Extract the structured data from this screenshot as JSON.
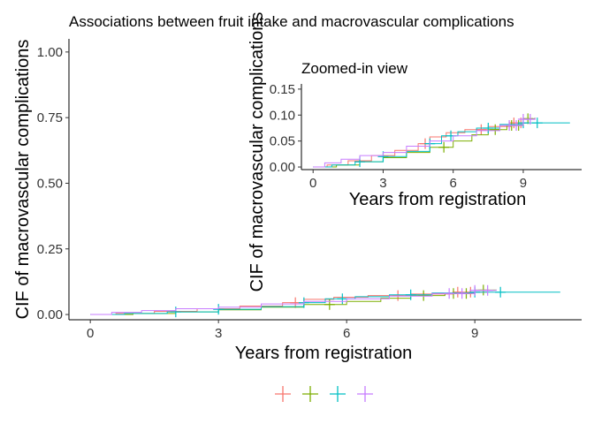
{
  "chart_data": [
    {
      "type": "line",
      "title": "Associations between fruit intake and macrovascular complications",
      "xlabel": "Years from registration",
      "ylabel": "CIF of macrovascular complications",
      "xlim": [
        -0.5,
        11.5
      ],
      "ylim": [
        -0.02,
        1.05
      ],
      "xticks": [
        "0",
        "3",
        "6",
        "9"
      ],
      "yticks": [
        "0.00",
        "0.25",
        "0.50",
        "0.75",
        "1.00"
      ],
      "grid": false,
      "legend": "bottom",
      "series": [
        {
          "color": "#F8766D",
          "steps": [
            [
              0,
              0
            ],
            [
              0.6,
              0.004
            ],
            [
              1.5,
              0.012
            ],
            [
              2.5,
              0.022
            ],
            [
              3.5,
              0.032
            ],
            [
              4.5,
              0.045
            ],
            [
              5.0,
              0.058
            ],
            [
              5.7,
              0.066
            ],
            [
              6.5,
              0.072
            ],
            [
              7.5,
              0.078
            ],
            [
              8.5,
              0.085
            ],
            [
              9.3,
              0.085
            ]
          ],
          "censor": [
            4.8,
            7.2,
            8.6,
            8.9
          ]
        },
        {
          "color": "#7CAE00",
          "steps": [
            [
              0,
              0
            ],
            [
              1.0,
              0.004
            ],
            [
              2.0,
              0.01
            ],
            [
              3.0,
              0.018
            ],
            [
              4.0,
              0.028
            ],
            [
              5.0,
              0.038
            ],
            [
              6.0,
              0.05
            ],
            [
              6.8,
              0.062
            ],
            [
              7.5,
              0.072
            ],
            [
              8.3,
              0.08
            ],
            [
              9.0,
              0.093
            ],
            [
              9.5,
              0.095
            ]
          ],
          "censor": [
            5.6,
            7.8,
            8.5,
            8.8,
            9.2
          ]
        },
        {
          "color": "#00BFC4",
          "steps": [
            [
              0,
              0
            ],
            [
              0.8,
              0.004
            ],
            [
              1.8,
              0.01
            ],
            [
              3.0,
              0.02
            ],
            [
              4.0,
              0.03
            ],
            [
              5.0,
              0.045
            ],
            [
              5.5,
              0.06
            ],
            [
              6.2,
              0.068
            ],
            [
              7.0,
              0.075
            ],
            [
              8.0,
              0.082
            ],
            [
              9.0,
              0.085
            ],
            [
              11.0,
              0.085
            ]
          ],
          "censor": [
            2.0,
            3.0,
            5.0,
            5.9,
            7.5,
            9.0,
            9.6
          ]
        },
        {
          "color": "#C77CFF",
          "steps": [
            [
              0,
              0
            ],
            [
              0.5,
              0.008
            ],
            [
              1.2,
              0.015
            ],
            [
              2.0,
              0.022
            ],
            [
              3.0,
              0.028
            ],
            [
              4.0,
              0.04
            ],
            [
              5.0,
              0.05
            ],
            [
              6.0,
              0.06
            ],
            [
              7.0,
              0.07
            ],
            [
              8.0,
              0.08
            ],
            [
              9.0,
              0.092
            ],
            [
              9.5,
              0.095
            ]
          ],
          "censor": [
            8.4,
            8.7,
            9.0,
            9.3
          ]
        }
      ]
    },
    {
      "type": "line",
      "title": "Zoomed-in view",
      "xlabel": "Years from registration",
      "ylabel": "CIF of macrovascular complications",
      "xlim": [
        -0.5,
        11.5
      ],
      "ylim": [
        -0.005,
        0.16
      ],
      "xticks": [
        "0",
        "3",
        "6",
        "9"
      ],
      "yticks": [
        "0.00",
        "0.05",
        "0.10",
        "0.15"
      ],
      "grid": false
    }
  ]
}
